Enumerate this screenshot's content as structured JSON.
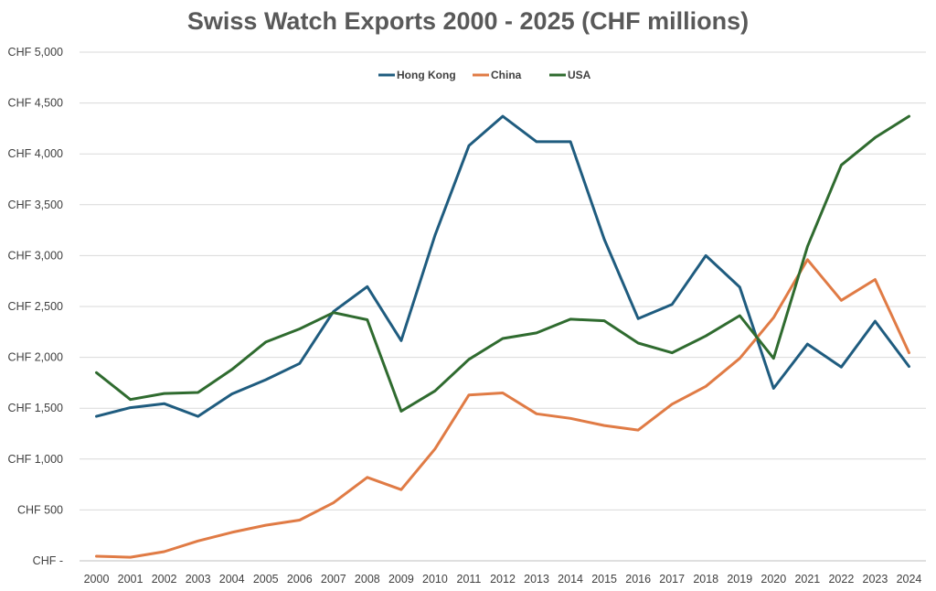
{
  "chart_data": {
    "type": "line",
    "title": "Swiss Watch Exports 2000 - 2025 (CHF millions)",
    "xlabel": "",
    "ylabel": "",
    "x": [
      "2000",
      "2001",
      "2002",
      "2003",
      "2004",
      "2005",
      "2006",
      "2007",
      "2008",
      "2009",
      "2010",
      "2011",
      "2012",
      "2013",
      "2014",
      "2015",
      "2016",
      "2017",
      "2018",
      "2019",
      "2020",
      "2021",
      "2022",
      "2023",
      "2024"
    ],
    "ylim": [
      0,
      5000
    ],
    "ytick_values": [
      0,
      500,
      1000,
      1500,
      2000,
      2500,
      3000,
      3500,
      4000,
      4500,
      5000
    ],
    "ytick_labels": [
      "CHF -",
      "CHF 500",
      "CHF 1,000",
      "CHF 1,500",
      "CHF 2,000",
      "CHF 2,500",
      "CHF 3,000",
      "CHF 3,500",
      "CHF 4,000",
      "CHF 4,500",
      "CHF 5,000"
    ],
    "grid": true,
    "legend_position": "top-center",
    "series": [
      {
        "name": "Hong Kong",
        "color": "#1f5c7f",
        "values": [
          1420,
          1505,
          1545,
          1420,
          1640,
          1780,
          1940,
          2450,
          2695,
          2165,
          3200,
          4080,
          4370,
          4120,
          4120,
          3160,
          2380,
          2520,
          3000,
          2690,
          1695,
          2130,
          1905,
          2355,
          1910
        ]
      },
      {
        "name": "China",
        "color": "#e07b45",
        "values": [
          45,
          35,
          90,
          195,
          280,
          350,
          400,
          570,
          820,
          700,
          1100,
          1630,
          1650,
          1445,
          1400,
          1330,
          1285,
          1540,
          1715,
          1990,
          2390,
          2960,
          2560,
          2765,
          2045
        ]
      },
      {
        "name": "USA",
        "color": "#2f6b2f",
        "values": [
          1850,
          1585,
          1645,
          1655,
          1880,
          2150,
          2280,
          2440,
          2370,
          1470,
          1670,
          1980,
          2185,
          2240,
          2375,
          2360,
          2140,
          2045,
          2210,
          2410,
          1990,
          3090,
          3890,
          4160,
          4370
        ]
      }
    ]
  }
}
